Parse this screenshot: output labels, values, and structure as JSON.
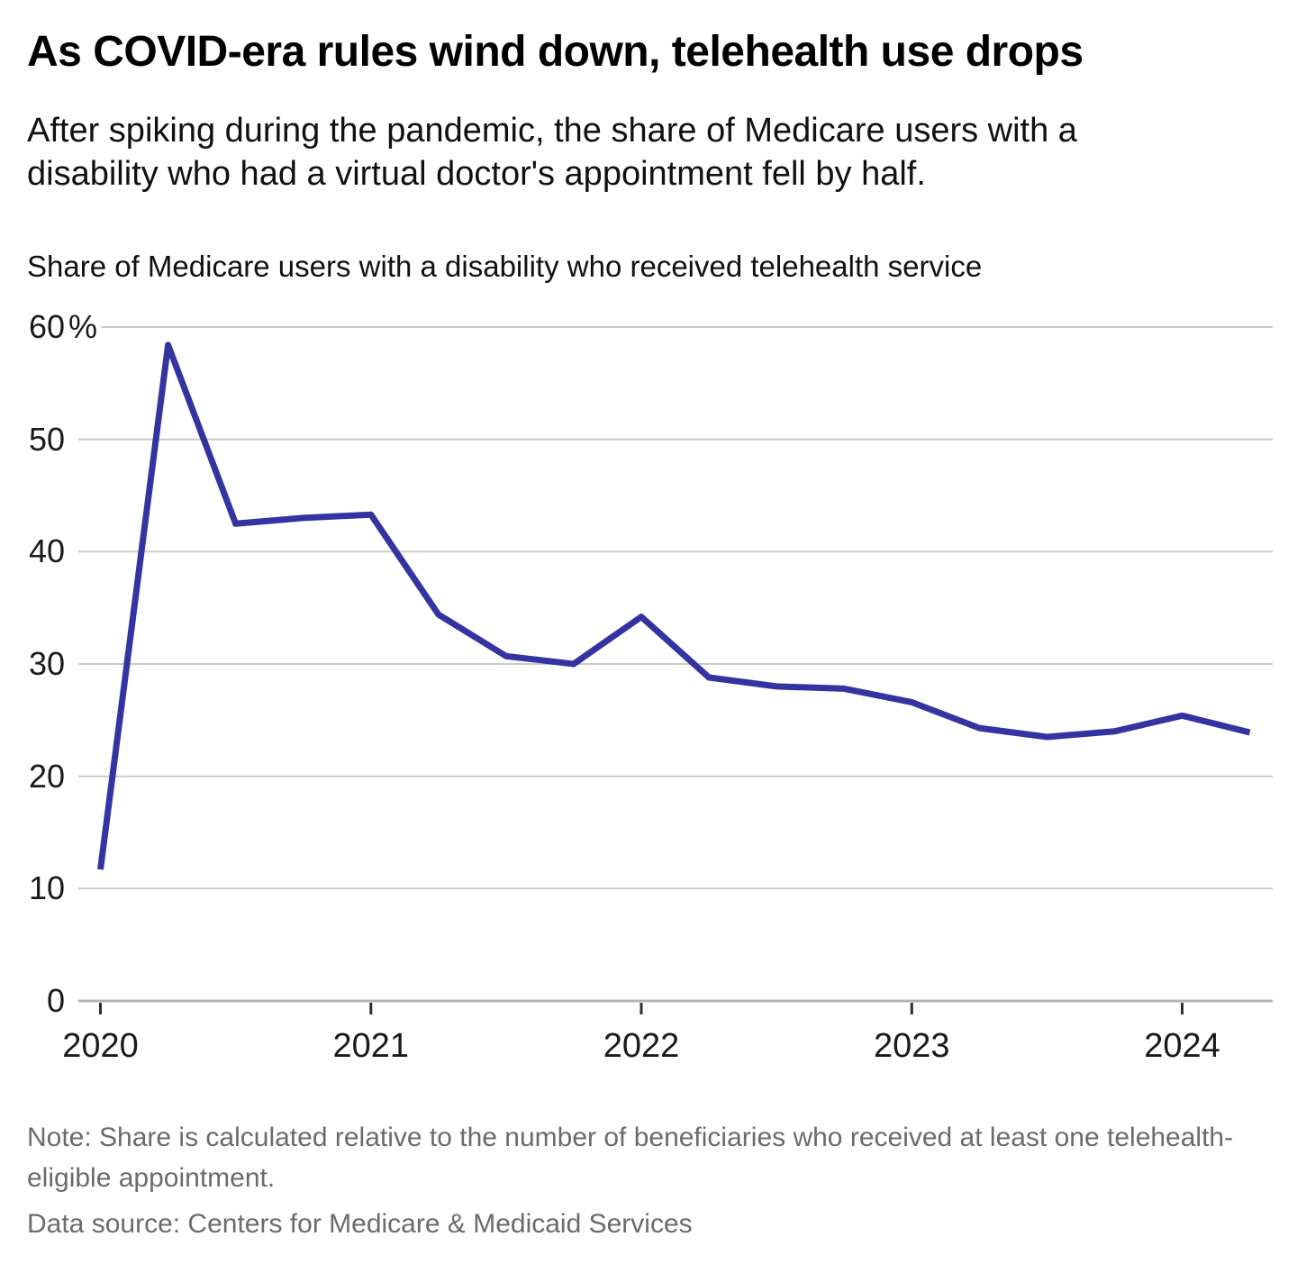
{
  "header": {
    "title": "As COVID-era rules wind down, telehealth use drops",
    "subtitle": "After spiking during the pandemic, the share of Medicare users with a disability who had a virtual doctor's appointment fell by half."
  },
  "chart": {
    "description": "Share of Medicare users with a disability who received telehealth service"
  },
  "chart_data": {
    "type": "line",
    "title": "Share of Medicare users with a disability who received telehealth service",
    "x": [
      "2020 Q1",
      "2020 Q2",
      "2020 Q3",
      "2020 Q4",
      "2021 Q1",
      "2021 Q2",
      "2021 Q3",
      "2021 Q4",
      "2022 Q1",
      "2022 Q2",
      "2022 Q3",
      "2022 Q4",
      "2023 Q1",
      "2023 Q2",
      "2023 Q3",
      "2023 Q4",
      "2024 Q1",
      "2024 Q2"
    ],
    "values": [
      11.7,
      58.4,
      42.5,
      43.0,
      43.3,
      34.4,
      30.7,
      30.0,
      34.2,
      28.8,
      28.0,
      27.8,
      26.6,
      24.3,
      23.5,
      24.0,
      25.4,
      23.9
    ],
    "unit": "%",
    "xlabel": "",
    "ylabel": "",
    "x_tick_labels": [
      "2020",
      "2021",
      "2022",
      "2023",
      "2024"
    ],
    "y_ticks": [
      0,
      10,
      20,
      30,
      40,
      50,
      60
    ],
    "y_top_tick_suffix": "%",
    "ylim": [
      0,
      60
    ],
    "grid": "horizontal",
    "legend_position": "none",
    "line_color": "#3333a2",
    "grid_color": "#c9c9c9",
    "axis_color": "#b3b3b3",
    "tick_color": "#2f2f2f",
    "label_color": "#1a1a1a"
  },
  "footer": {
    "note": "Note: Share is calculated relative to the number of beneficiaries who received at least one telehealth-eligible appointment.",
    "data_source": "Data source: Centers for Medicare & Medicaid Services"
  }
}
